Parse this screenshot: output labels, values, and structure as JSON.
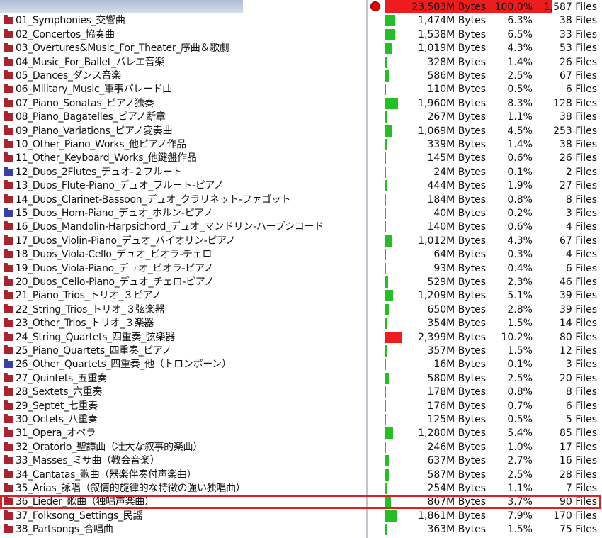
{
  "colors": {
    "bar_normal": "#22c022",
    "bar_max": "#ee1c1c",
    "folder": "#a8242e",
    "folder_blue": "#3b3ea6",
    "highlight": "#e02020"
  },
  "total": {
    "bytes": "23,503M Bytes",
    "pct": "100.0%",
    "files": "1,587 Files",
    "fraction": 1.0
  },
  "folders": [
    {
      "name": "01_Symphonies_交響曲",
      "bytes": "1,474M Bytes",
      "pct": "6.3%",
      "files": "38 Files",
      "fraction": 0.063,
      "icon": "folder-icon"
    },
    {
      "name": "02_Concertos_協奏曲",
      "bytes": "1,538M Bytes",
      "pct": "6.5%",
      "files": "33 Files",
      "fraction": 0.065,
      "icon": "folder-icon"
    },
    {
      "name": "03_Overtures&Music_For_Theater_序曲＆歌劇",
      "bytes": "1,019M Bytes",
      "pct": "4.3%",
      "files": "53 Files",
      "fraction": 0.043,
      "icon": "folder-icon"
    },
    {
      "name": "04_Music_For_Ballet_バレエ音楽",
      "bytes": "328M Bytes",
      "pct": "1.4%",
      "files": "26 Files",
      "fraction": 0.014,
      "icon": "folder-icon"
    },
    {
      "name": "05_Dances_ダンス音楽",
      "bytes": "586M Bytes",
      "pct": "2.5%",
      "files": "67 Files",
      "fraction": 0.025,
      "icon": "folder-icon"
    },
    {
      "name": "06_Military_Music_軍事パレード曲",
      "bytes": "110M Bytes",
      "pct": "0.5%",
      "files": "6 Files",
      "fraction": 0.005,
      "icon": "folder-icon"
    },
    {
      "name": "07_Piano_Sonatas_ピアノ独奏",
      "bytes": "1,960M Bytes",
      "pct": "8.3%",
      "files": "128 Files",
      "fraction": 0.083,
      "icon": "folder-icon"
    },
    {
      "name": "08_Piano_Bagatelles_ピアノ断章",
      "bytes": "267M Bytes",
      "pct": "1.1%",
      "files": "38 Files",
      "fraction": 0.011,
      "icon": "folder-icon"
    },
    {
      "name": "09_Piano_Variations_ピアノ変奏曲",
      "bytes": "1,069M Bytes",
      "pct": "4.5%",
      "files": "253 Files",
      "fraction": 0.045,
      "icon": "folder-icon"
    },
    {
      "name": "10_Other_Piano_Works_他ピアノ作品",
      "bytes": "339M Bytes",
      "pct": "1.4%",
      "files": "38 Files",
      "fraction": 0.014,
      "icon": "folder-icon"
    },
    {
      "name": "11_Other_Keyboard_Works_他鍵盤作品",
      "bytes": "145M Bytes",
      "pct": "0.6%",
      "files": "26 Files",
      "fraction": 0.006,
      "icon": "folder-icon"
    },
    {
      "name": "12_Duos_2Flutes_デュオ-２フルート",
      "bytes": "24M Bytes",
      "pct": "0.1%",
      "files": "2 Files",
      "fraction": 0.001,
      "icon": "folder-blue-icon"
    },
    {
      "name": "13_Duos_Flute-Piano_デュオ_フルート-ピアノ",
      "bytes": "444M Bytes",
      "pct": "1.9%",
      "files": "27 Files",
      "fraction": 0.019,
      "icon": "folder-icon"
    },
    {
      "name": "14_Duos_Clarinet-Bassoon_デュオ_クラリネット-ファゴット",
      "bytes": "184M Bytes",
      "pct": "0.8%",
      "files": "8 Files",
      "fraction": 0.008,
      "icon": "folder-icon"
    },
    {
      "name": "15_Duos_Horn-Piano_デュオ_ホルン-ピアノ",
      "bytes": "40M Bytes",
      "pct": "0.2%",
      "files": "3 Files",
      "fraction": 0.002,
      "icon": "folder-blue-icon"
    },
    {
      "name": "16_Duos_Mandolin-Harpsichord_デュオ_マンドリン-ハープシコード",
      "bytes": "140M Bytes",
      "pct": "0.6%",
      "files": "4 Files",
      "fraction": 0.006,
      "icon": "folder-icon"
    },
    {
      "name": "17_Duos_Violin-Piano_デュオ_バイオリン-ピアノ",
      "bytes": "1,012M Bytes",
      "pct": "4.3%",
      "files": "67 Files",
      "fraction": 0.043,
      "icon": "folder-icon"
    },
    {
      "name": "18_Duos_Viola-Cello_デュオ_ビオラ-チェロ",
      "bytes": "64M Bytes",
      "pct": "0.3%",
      "files": "4 Files",
      "fraction": 0.003,
      "icon": "folder-icon"
    },
    {
      "name": "19_Duos_Viola-Piano_デュオ_ビオラ-ピアノ",
      "bytes": "93M Bytes",
      "pct": "0.4%",
      "files": "6 Files",
      "fraction": 0.004,
      "icon": "folder-icon"
    },
    {
      "name": "20_Duos_Cello-Piano_デュオ_チェロ-ピアノ",
      "bytes": "529M Bytes",
      "pct": "2.3%",
      "files": "46 Files",
      "fraction": 0.023,
      "icon": "folder-icon"
    },
    {
      "name": "21_Piano_Trios_トリオ_３ピアノ",
      "bytes": "1,209M Bytes",
      "pct": "5.1%",
      "files": "39 Files",
      "fraction": 0.051,
      "icon": "folder-icon"
    },
    {
      "name": "22_String_Trios_トリオ_３弦楽器",
      "bytes": "650M Bytes",
      "pct": "2.8%",
      "files": "39 Files",
      "fraction": 0.028,
      "icon": "folder-icon"
    },
    {
      "name": "23_Other_Trios_トリオ_３楽器",
      "bytes": "354M Bytes",
      "pct": "1.5%",
      "files": "14 Files",
      "fraction": 0.015,
      "icon": "folder-icon"
    },
    {
      "name": "24_String_Quartets_四重奏_弦楽器",
      "bytes": "2,399M Bytes",
      "pct": "10.2%",
      "files": "80 Files",
      "fraction": 0.102,
      "icon": "folder-icon",
      "max": true
    },
    {
      "name": "25_Piano_Quartets_四重奏_ピアノ",
      "bytes": "357M Bytes",
      "pct": "1.5%",
      "files": "12 Files",
      "fraction": 0.015,
      "icon": "folder-icon"
    },
    {
      "name": "26_Other_Quartets_四重奏_他（トロンボーン）",
      "bytes": "16M Bytes",
      "pct": "0.1%",
      "files": "3 Files",
      "fraction": 0.001,
      "icon": "folder-blue-icon"
    },
    {
      "name": "27_Quintets_五重奏",
      "bytes": "580M Bytes",
      "pct": "2.5%",
      "files": "20 Files",
      "fraction": 0.025,
      "icon": "folder-icon"
    },
    {
      "name": "28_Sextets_六重奏",
      "bytes": "178M Bytes",
      "pct": "0.8%",
      "files": "8 Files",
      "fraction": 0.008,
      "icon": "folder-icon"
    },
    {
      "name": "29_Septet_七重奏",
      "bytes": "176M Bytes",
      "pct": "0.7%",
      "files": "6 Files",
      "fraction": 0.007,
      "icon": "folder-icon"
    },
    {
      "name": "30_Octets_八重奏",
      "bytes": "125M Bytes",
      "pct": "0.5%",
      "files": "5 Files",
      "fraction": 0.005,
      "icon": "folder-icon"
    },
    {
      "name": "31_Opera_オペラ",
      "bytes": "1,280M Bytes",
      "pct": "5.4%",
      "files": "85 Files",
      "fraction": 0.054,
      "icon": "folder-icon"
    },
    {
      "name": "32_Oratorio_聖譚曲（壮大な叙事的楽曲）",
      "bytes": "246M Bytes",
      "pct": "1.0%",
      "files": "17 Files",
      "fraction": 0.01,
      "icon": "folder-icon"
    },
    {
      "name": "33_Masses_ミサ曲（教会音楽）",
      "bytes": "637M Bytes",
      "pct": "2.7%",
      "files": "16 Files",
      "fraction": 0.027,
      "icon": "folder-icon"
    },
    {
      "name": "34_Cantatas_歌曲（器楽伴奏付声楽曲）",
      "bytes": "587M Bytes",
      "pct": "2.5%",
      "files": "28 Files",
      "fraction": 0.025,
      "icon": "folder-icon"
    },
    {
      "name": "35_Arias_詠唱（叙情的旋律的な特徴の強い独唱曲）",
      "bytes": "254M Bytes",
      "pct": "1.1%",
      "files": "7 Files",
      "fraction": 0.011,
      "icon": "folder-icon"
    },
    {
      "name": "36_Lieder_歌曲（独唱声楽曲）",
      "bytes": "867M Bytes",
      "pct": "3.7%",
      "files": "90 Files",
      "fraction": 0.037,
      "icon": "folder-icon",
      "selected": true
    },
    {
      "name": "37_Folksong_Settings_民謡",
      "bytes": "1,861M Bytes",
      "pct": "7.9%",
      "files": "170 Files",
      "fraction": 0.079,
      "icon": "folder-icon"
    },
    {
      "name": "38_Partsongs_合唱曲",
      "bytes": "363M Bytes",
      "pct": "1.5%",
      "files": "75 Files",
      "fraction": 0.015,
      "icon": "folder-icon"
    }
  ]
}
